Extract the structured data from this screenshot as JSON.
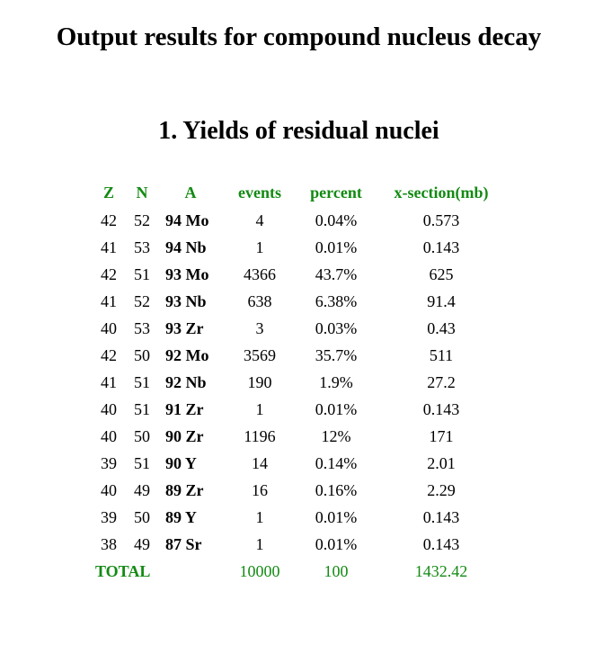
{
  "page": {
    "title": "Output results for compound nucleus decay"
  },
  "section": {
    "title": "1. Yields of residual nuclei"
  },
  "table": {
    "headers": [
      "Z",
      "N",
      "A",
      "events",
      "percent",
      "x-section(mb)"
    ],
    "rows": [
      {
        "z": "42",
        "n": "52",
        "a": "94 Mo",
        "events": "4",
        "percent": "0.04%",
        "xsec": "0.573"
      },
      {
        "z": "41",
        "n": "53",
        "a": "94 Nb",
        "events": "1",
        "percent": "0.01%",
        "xsec": "0.143"
      },
      {
        "z": "42",
        "n": "51",
        "a": "93 Mo",
        "events": "4366",
        "percent": "43.7%",
        "xsec": "625"
      },
      {
        "z": "41",
        "n": "52",
        "a": "93 Nb",
        "events": "638",
        "percent": "6.38%",
        "xsec": "91.4"
      },
      {
        "z": "40",
        "n": "53",
        "a": "93 Zr",
        "events": "3",
        "percent": "0.03%",
        "xsec": "0.43"
      },
      {
        "z": "42",
        "n": "50",
        "a": "92 Mo",
        "events": "3569",
        "percent": "35.7%",
        "xsec": "511"
      },
      {
        "z": "41",
        "n": "51",
        "a": "92 Nb",
        "events": "190",
        "percent": "1.9%",
        "xsec": "27.2"
      },
      {
        "z": "40",
        "n": "51",
        "a": "91 Zr",
        "events": "1",
        "percent": "0.01%",
        "xsec": "0.143"
      },
      {
        "z": "40",
        "n": "50",
        "a": "90 Zr",
        "events": "1196",
        "percent": "12%",
        "xsec": "171"
      },
      {
        "z": "39",
        "n": "51",
        "a": "90 Y",
        "events": "14",
        "percent": "0.14%",
        "xsec": "2.01"
      },
      {
        "z": "40",
        "n": "49",
        "a": "89 Zr",
        "events": "16",
        "percent": "0.16%",
        "xsec": "2.29"
      },
      {
        "z": "39",
        "n": "50",
        "a": "89 Y",
        "events": "1",
        "percent": "0.01%",
        "xsec": "0.143"
      },
      {
        "z": "38",
        "n": "49",
        "a": "87 Sr",
        "events": "1",
        "percent": "0.01%",
        "xsec": "0.143"
      }
    ],
    "total": {
      "label": "TOTAL",
      "events": "10000",
      "percent": "100",
      "xsec": "1432.42"
    }
  },
  "colors": {
    "header_green": "#138a13",
    "text": "#000000",
    "background": "#ffffff"
  }
}
